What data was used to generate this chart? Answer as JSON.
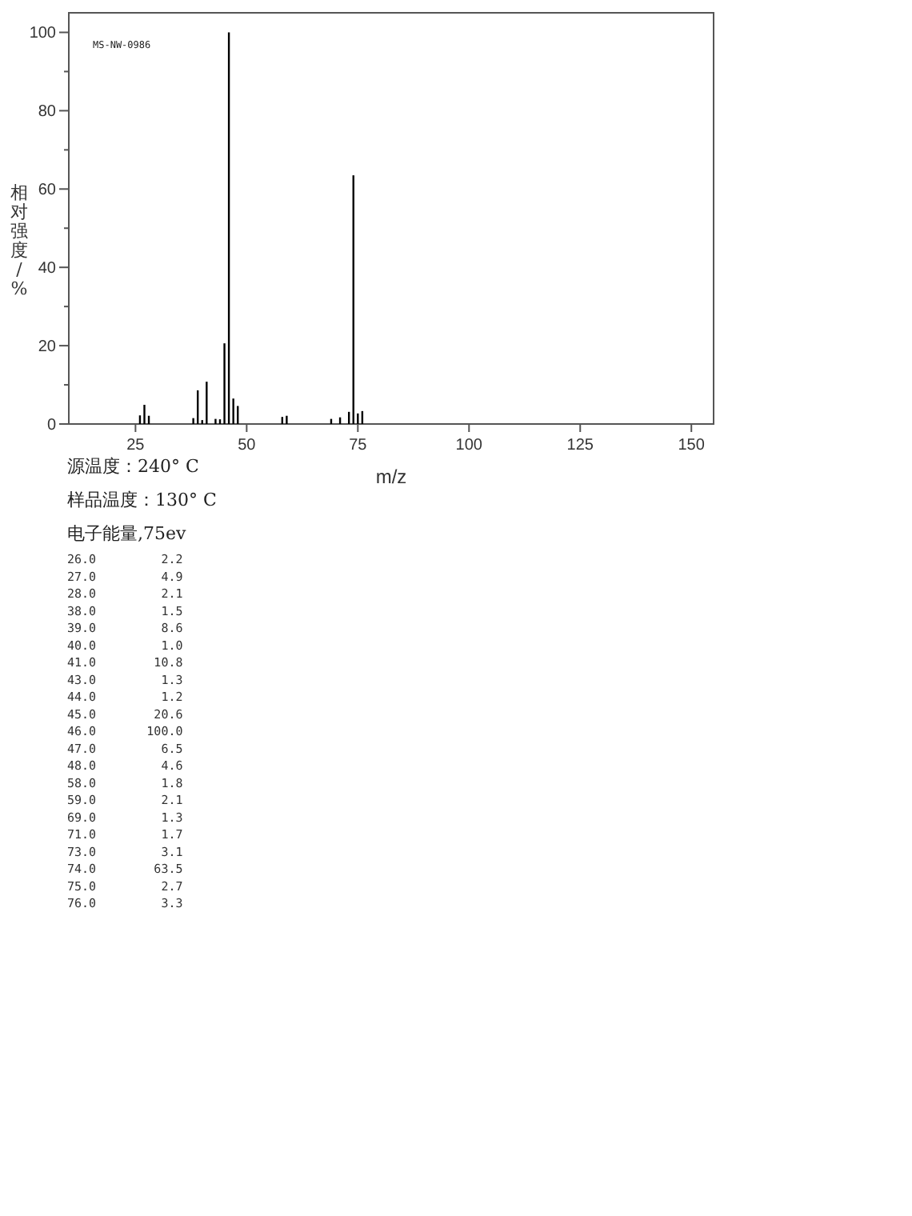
{
  "chart_data": {
    "type": "bar",
    "xlabel": "m/z",
    "ylabel": "相对强度/%",
    "x": [
      26,
      27,
      28,
      38,
      39,
      40,
      41,
      43,
      44,
      45,
      46,
      47,
      48,
      58,
      59,
      69,
      71,
      73,
      74,
      75,
      76
    ],
    "values": [
      2.2,
      4.9,
      2.1,
      1.5,
      8.6,
      1.0,
      10.8,
      1.3,
      1.2,
      20.6,
      100.0,
      6.5,
      4.6,
      1.8,
      2.1,
      1.3,
      1.7,
      3.1,
      63.5,
      2.7,
      3.3
    ],
    "color": "#000000",
    "xlim": [
      10,
      155
    ],
    "xticks": [
      25,
      50,
      75,
      100,
      125,
      150
    ],
    "ylim": [
      0,
      105
    ],
    "yticks": [
      0,
      {
        "value": 10,
        "label": null
      },
      20,
      {
        "value": 30,
        "label": null
      },
      40,
      {
        "value": 50,
        "label": null
      },
      60,
      {
        "value": 70,
        "label": null
      },
      80,
      {
        "value": 90,
        "label": null
      },
      100
    ],
    "annotations": [
      "MS-NW-0986",
      "源温度：240° C",
      "样品温度：130° C",
      "电子能量,75ev",
      "26.0         2.2",
      "27.0         4.9",
      "28.0         2.1",
      "38.0         1.5",
      "39.0         8.6",
      "40.0         1.0",
      "41.0        10.8",
      "43.0         1.3",
      "44.0         1.2",
      "45.0        20.6",
      "46.0       100.0",
      "47.0         6.5",
      "48.0         4.6",
      "58.0         1.8",
      "59.0         2.1",
      "69.0         1.3",
      "71.0         1.7",
      "73.0         3.1",
      "74.0        63.5",
      "75.0         2.7",
      "76.0         3.3"
    ]
  }
}
